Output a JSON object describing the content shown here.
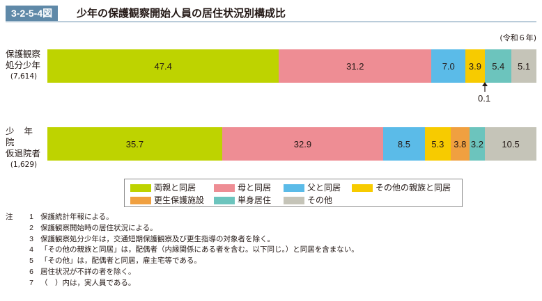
{
  "figure": {
    "id": "3-2-5-4図",
    "title": "少年の保護観察開始人員の居住状況別構成比",
    "year_note": "(令和６年)"
  },
  "rows": [
    {
      "label_lines": [
        "保護観察",
        "処分少年"
      ],
      "count": "(7,614)"
    },
    {
      "label_lines": [
        "少 年 院",
        "仮退院者"
      ],
      "count": "(1,629)"
    }
  ],
  "callout": {
    "text": "0.1",
    "row": 0,
    "category_index": 4
  },
  "chart_data": {
    "type": "bar",
    "orientation": "horizontal-stacked-100",
    "categories": [
      "保護観察処分少年(7,614)",
      "少年院仮退院者(1,629)"
    ],
    "series": [
      {
        "name": "両親と同居",
        "values": [
          47.4,
          35.7
        ],
        "color": "#bed300"
      },
      {
        "name": "母と同居",
        "values": [
          31.2,
          32.9
        ],
        "color": "#ee8d94"
      },
      {
        "name": "父と同居",
        "values": [
          7.0,
          8.5
        ],
        "color": "#5bbbe8"
      },
      {
        "name": "その他の親族と同居",
        "values": [
          3.9,
          5.3
        ],
        "color": "#f7cb00"
      },
      {
        "name": "更生保護施設",
        "values": [
          0.1,
          3.8
        ],
        "color": "#f0a040"
      },
      {
        "name": "単身居住",
        "values": [
          5.4,
          3.2
        ],
        "color": "#6cc4bd"
      },
      {
        "name": "その他",
        "values": [
          5.1,
          10.5
        ],
        "color": "#c5c4b8"
      }
    ],
    "value_labels": [
      [
        "47.4",
        "31.2",
        "7.0",
        "3.9",
        "",
        "5.4",
        "5.1"
      ],
      [
        "35.7",
        "32.9",
        "8.5",
        "5.3",
        "3.8",
        "3.2",
        "10.5"
      ]
    ],
    "xlim": [
      0,
      100
    ],
    "legend_position": "bottom"
  },
  "notes_prefix": "注",
  "notes": [
    {
      "num": "1",
      "text": "保護統計年報による。"
    },
    {
      "num": "2",
      "text": "保護観察開始時の居住状況による。"
    },
    {
      "num": "3",
      "text": "保護観察処分少年は，交通短期保護観察及び更生指導の対象者を除く。"
    },
    {
      "num": "4",
      "text": "「その他の親族と同居」は，配偶者（内縁関係にある者を含む。以下同じ。）と同居を含まない。"
    },
    {
      "num": "5",
      "text": "「その他」は，配偶者と同居，雇主宅等である。"
    },
    {
      "num": "6",
      "text": "居住状況が不詳の者を除く。"
    },
    {
      "num": "7",
      "text": "（　）内は，実人員である。"
    }
  ]
}
